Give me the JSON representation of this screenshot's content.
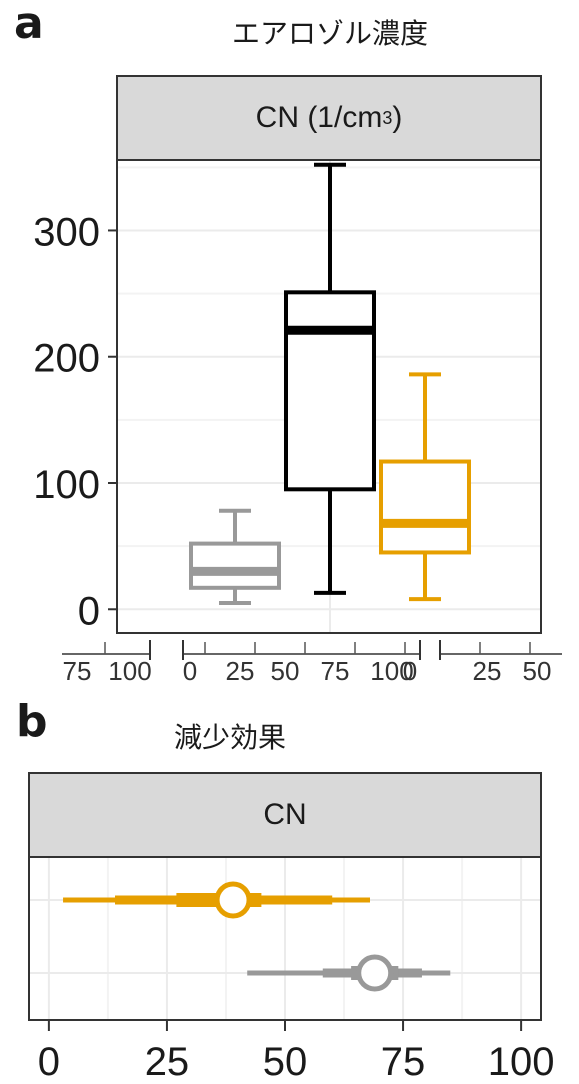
{
  "figure": {
    "panel_a_letter": "a",
    "panel_a_title": "エアロゾル濃度",
    "panel_a_strip_prefix": "CN (1/cm",
    "panel_a_strip_sup": "3",
    "panel_a_strip_suffix": ")",
    "panel_b_letter": "b",
    "panel_b_title": "減少効果",
    "panel_b_strip": "CN"
  },
  "chart_data": [
    {
      "type": "box",
      "title": "エアロゾル濃度",
      "facet": "CN (1/cm3)",
      "y_ticks": [
        0,
        100,
        200,
        300
      ],
      "ylim": [
        -18,
        355
      ],
      "grid": true,
      "boxes": [
        {
          "color": "#999999",
          "min": 5,
          "q1": 17,
          "median": 30,
          "q3": 52,
          "max": 78
        },
        {
          "color": "#000000",
          "min": 13,
          "q1": 95,
          "median": 221,
          "q3": 251,
          "max": 352
        },
        {
          "color": "#E69F00",
          "min": 8,
          "q1": 45,
          "median": 68,
          "q3": 117,
          "max": 186
        }
      ],
      "clipped_axis_fragment_labels": [
        "75",
        "100",
        "0",
        "25",
        "50",
        "75",
        "100",
        "0",
        "25",
        "50"
      ]
    },
    {
      "type": "interval",
      "title": "減少効果",
      "facet": "CN",
      "x_ticks": [
        0,
        25,
        50,
        75,
        100
      ],
      "xlim": [
        -4,
        104
      ],
      "grid": true,
      "series": [
        {
          "color": "#E69F00",
          "point": 39,
          "inner": [
            27,
            45
          ],
          "mid": [
            14,
            60
          ],
          "outer": [
            3,
            68
          ]
        },
        {
          "color": "#999999",
          "point": 69,
          "inner": [
            64,
            74
          ],
          "mid": [
            58,
            79
          ],
          "outer": [
            42,
            85
          ]
        }
      ]
    }
  ]
}
